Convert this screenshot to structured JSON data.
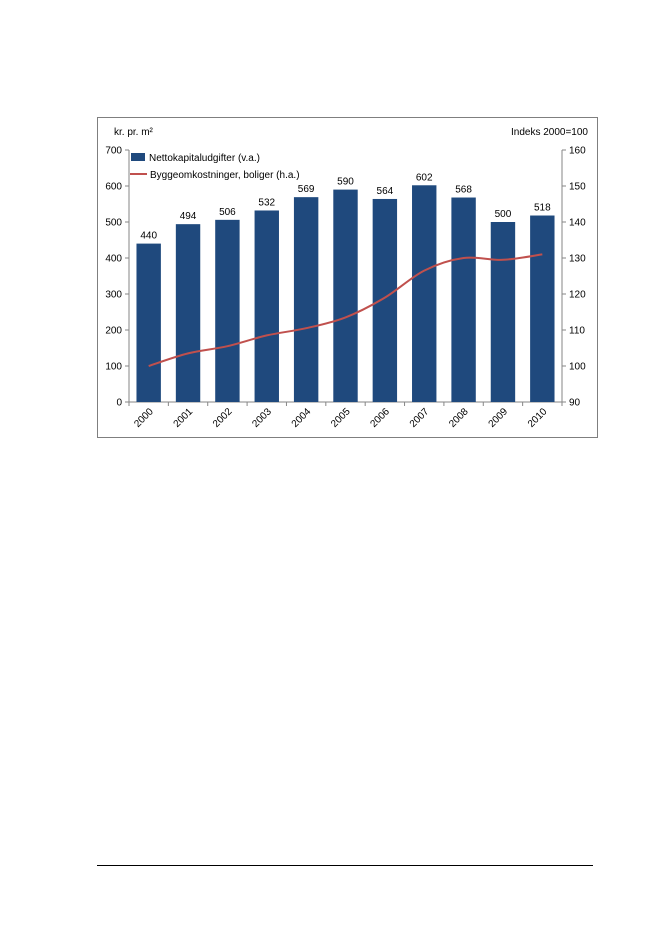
{
  "chart_data": {
    "type": "bar",
    "categories": [
      "2000",
      "2001",
      "2002",
      "2003",
      "2004",
      "2005",
      "2006",
      "2007",
      "2008",
      "2009",
      "2010"
    ],
    "series": [
      {
        "name": "Nettokapitaludgifter (v.a.)",
        "type": "bar",
        "axis": "left",
        "color": "#1f497d",
        "values": [
          440,
          494,
          506,
          532,
          569,
          590,
          564,
          602,
          568,
          500,
          518
        ]
      },
      {
        "name": "Byggeomkostninger, boliger (h.a.)",
        "type": "line",
        "axis": "right",
        "color": "#c0504d",
        "values": [
          100,
          103.5,
          105.5,
          108.5,
          110.5,
          113.5,
          119,
          126.5,
          130,
          129.5,
          131
        ]
      }
    ],
    "ylabel_left": "kr. pr. m²",
    "ylabel_right": "Indeks 2000=100",
    "ylim_left": [
      0,
      700
    ],
    "ylim_right": [
      90,
      160
    ],
    "yticks_left": [
      "700",
      "600",
      "500",
      "400",
      "300",
      "200",
      "100",
      "0"
    ],
    "yticks_right": [
      "160",
      "150",
      "140",
      "130",
      "120",
      "110",
      "100",
      "90"
    ],
    "data_labels": [
      "440",
      "494",
      "506",
      "532",
      "569",
      "590",
      "564",
      "602",
      "568",
      "500",
      "518"
    ],
    "legend_position": "top-left",
    "grid": false
  }
}
